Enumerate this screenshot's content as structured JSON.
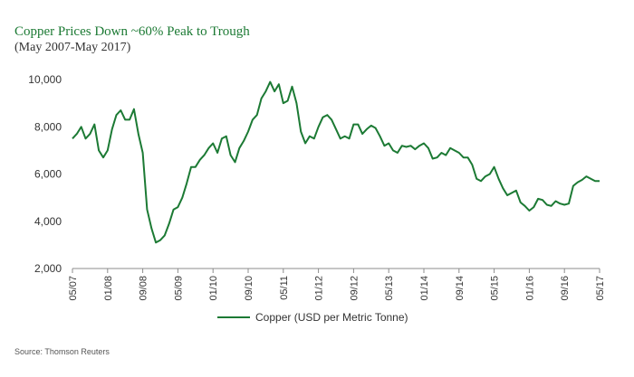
{
  "title": "Copper Prices Down ~60% Peak to Trough",
  "subtitle": "(May 2007-May 2017)",
  "source": "Source: Thomson Reuters",
  "chart_data": {
    "type": "line",
    "title": "Copper Prices Down ~60% Peak to Trough",
    "subtitle": "(May 2007-May 2017)",
    "xlabel": "",
    "ylabel": "",
    "ylim": [
      2000,
      10000
    ],
    "yticks": [
      2000,
      4000,
      6000,
      8000,
      10000
    ],
    "ytick_labels": [
      "2,000",
      "4,000",
      "6,000",
      "8,000",
      "10,000"
    ],
    "xlim": [
      "2007-05",
      "2017-05"
    ],
    "xticks": [
      "2007-05",
      "2008-01",
      "2008-09",
      "2009-05",
      "2010-01",
      "2010-09",
      "2011-05",
      "2012-01",
      "2012-09",
      "2013-05",
      "2014-01",
      "2014-09",
      "2015-05",
      "2016-01",
      "2016-09",
      "2017-05"
    ],
    "xtick_labels": [
      "05/07",
      "01/08",
      "09/08",
      "05/09",
      "01/10",
      "09/10",
      "05/11",
      "01/12",
      "09/12",
      "05/13",
      "01/14",
      "09/14",
      "05/15",
      "01/16",
      "09/16",
      "05/17"
    ],
    "grid": false,
    "legend_position": "bottom-center",
    "series": [
      {
        "name": "Copper (USD per Metric Tonne)",
        "color": "#1c7a34",
        "points": [
          [
            "2007-05",
            7500
          ],
          [
            "2007-06",
            7700
          ],
          [
            "2007-07",
            8000
          ],
          [
            "2007-08",
            7500
          ],
          [
            "2007-09",
            7700
          ],
          [
            "2007-10",
            8100
          ],
          [
            "2007-11",
            7000
          ],
          [
            "2007-12",
            6700
          ],
          [
            "2008-01",
            7000
          ],
          [
            "2008-02",
            7900
          ],
          [
            "2008-03",
            8500
          ],
          [
            "2008-04",
            8700
          ],
          [
            "2008-05",
            8300
          ],
          [
            "2008-06",
            8300
          ],
          [
            "2008-07",
            8750
          ],
          [
            "2008-08",
            7700
          ],
          [
            "2008-09",
            6900
          ],
          [
            "2008-10",
            4500
          ],
          [
            "2008-11",
            3700
          ],
          [
            "2008-12",
            3100
          ],
          [
            "2009-01",
            3200
          ],
          [
            "2009-02",
            3400
          ],
          [
            "2009-03",
            3900
          ],
          [
            "2009-04",
            4500
          ],
          [
            "2009-05",
            4600
          ],
          [
            "2009-06",
            5000
          ],
          [
            "2009-07",
            5600
          ],
          [
            "2009-08",
            6300
          ],
          [
            "2009-09",
            6300
          ],
          [
            "2009-10",
            6600
          ],
          [
            "2009-11",
            6800
          ],
          [
            "2009-12",
            7100
          ],
          [
            "2010-01",
            7300
          ],
          [
            "2010-02",
            6900
          ],
          [
            "2010-03",
            7500
          ],
          [
            "2010-04",
            7600
          ],
          [
            "2010-05",
            6800
          ],
          [
            "2010-06",
            6500
          ],
          [
            "2010-07",
            7100
          ],
          [
            "2010-08",
            7400
          ],
          [
            "2010-09",
            7800
          ],
          [
            "2010-10",
            8300
          ],
          [
            "2010-11",
            8500
          ],
          [
            "2010-12",
            9200
          ],
          [
            "2011-01",
            9500
          ],
          [
            "2011-02",
            9900
          ],
          [
            "2011-03",
            9500
          ],
          [
            "2011-04",
            9800
          ],
          [
            "2011-05",
            9000
          ],
          [
            "2011-06",
            9100
          ],
          [
            "2011-07",
            9700
          ],
          [
            "2011-08",
            9000
          ],
          [
            "2011-09",
            7800
          ],
          [
            "2011-10",
            7300
          ],
          [
            "2011-11",
            7600
          ],
          [
            "2011-12",
            7500
          ],
          [
            "2012-01",
            8000
          ],
          [
            "2012-02",
            8400
          ],
          [
            "2012-03",
            8500
          ],
          [
            "2012-04",
            8300
          ],
          [
            "2012-05",
            7900
          ],
          [
            "2012-06",
            7500
          ],
          [
            "2012-07",
            7600
          ],
          [
            "2012-08",
            7500
          ],
          [
            "2012-09",
            8100
          ],
          [
            "2012-10",
            8100
          ],
          [
            "2012-11",
            7700
          ],
          [
            "2012-12",
            7900
          ],
          [
            "2013-01",
            8050
          ],
          [
            "2013-02",
            7950
          ],
          [
            "2013-03",
            7600
          ],
          [
            "2013-04",
            7200
          ],
          [
            "2013-05",
            7300
          ],
          [
            "2013-06",
            7000
          ],
          [
            "2013-07",
            6900
          ],
          [
            "2013-08",
            7200
          ],
          [
            "2013-09",
            7150
          ],
          [
            "2013-10",
            7200
          ],
          [
            "2013-11",
            7050
          ],
          [
            "2013-12",
            7200
          ],
          [
            "2014-01",
            7300
          ],
          [
            "2014-02",
            7100
          ],
          [
            "2014-03",
            6650
          ],
          [
            "2014-04",
            6700
          ],
          [
            "2014-05",
            6900
          ],
          [
            "2014-06",
            6800
          ],
          [
            "2014-07",
            7100
          ],
          [
            "2014-08",
            7000
          ],
          [
            "2014-09",
            6900
          ],
          [
            "2014-10",
            6700
          ],
          [
            "2014-11",
            6700
          ],
          [
            "2014-12",
            6400
          ],
          [
            "2015-01",
            5800
          ],
          [
            "2015-02",
            5700
          ],
          [
            "2015-03",
            5900
          ],
          [
            "2015-04",
            6000
          ],
          [
            "2015-05",
            6300
          ],
          [
            "2015-06",
            5800
          ],
          [
            "2015-07",
            5400
          ],
          [
            "2015-08",
            5100
          ],
          [
            "2015-09",
            5200
          ],
          [
            "2015-10",
            5300
          ],
          [
            "2015-11",
            4800
          ],
          [
            "2015-12",
            4650
          ],
          [
            "2016-01",
            4450
          ],
          [
            "2016-02",
            4600
          ],
          [
            "2016-03",
            4950
          ],
          [
            "2016-04",
            4900
          ],
          [
            "2016-05",
            4700
          ],
          [
            "2016-06",
            4650
          ],
          [
            "2016-07",
            4850
          ],
          [
            "2016-08",
            4750
          ],
          [
            "2016-09",
            4700
          ],
          [
            "2016-10",
            4750
          ],
          [
            "2016-11",
            5500
          ],
          [
            "2016-12",
            5650
          ],
          [
            "2017-01",
            5750
          ],
          [
            "2017-02",
            5900
          ],
          [
            "2017-03",
            5800
          ],
          [
            "2017-04",
            5700
          ],
          [
            "2017-05",
            5700
          ]
        ]
      }
    ]
  }
}
